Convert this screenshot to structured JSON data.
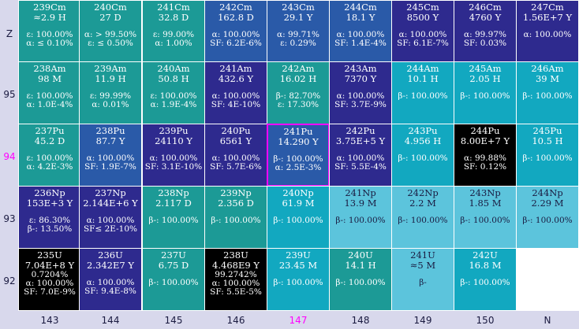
{
  "axes": {
    "y_labels": [
      {
        "text": "Z",
        "highlight": false
      },
      {
        "text": "95",
        "highlight": false
      },
      {
        "text": "94",
        "highlight": true
      },
      {
        "text": "93",
        "highlight": false
      },
      {
        "text": "92",
        "highlight": false
      }
    ],
    "x_labels": [
      {
        "text": "143",
        "highlight": false
      },
      {
        "text": "144",
        "highlight": false
      },
      {
        "text": "145",
        "highlight": false
      },
      {
        "text": "146",
        "highlight": false
      },
      {
        "text": "147",
        "highlight": true
      },
      {
        "text": "148",
        "highlight": false
      },
      {
        "text": "149",
        "highlight": false
      },
      {
        "text": "150",
        "highlight": false
      },
      {
        "text": "N",
        "highlight": false
      }
    ]
  },
  "colors": {
    "teal": "#1c9a96",
    "indigo": "#2e2a8e",
    "cyan": "#12a8c0",
    "sky": "#5cc4dc",
    "black": "#000000",
    "blue": "#2a5aa8",
    "selected_border": "#ff00ff",
    "empty": "#ffffff"
  },
  "rows": [
    [
      {
        "nuclide": "239Cm",
        "half_life": "≈2.9 H",
        "decays": [
          "ε: 100.00%",
          "α: ≤ 0.10%"
        ],
        "color": "teal"
      },
      {
        "nuclide": "240Cm",
        "half_life": "27 D",
        "decays": [
          "α: > 99.50%",
          "ε: ≤ 0.50%"
        ],
        "color": "teal"
      },
      {
        "nuclide": "241Cm",
        "half_life": "32.8 D",
        "decays": [
          "ε: 99.00%",
          "α: 1.00%"
        ],
        "color": "teal"
      },
      {
        "nuclide": "242Cm",
        "half_life": "162.8 D",
        "decays": [
          "α: 100.00%",
          "SF: 6.2E-6%"
        ],
        "color": "blue"
      },
      {
        "nuclide": "243Cm",
        "half_life": "29.1 Y",
        "decays": [
          "α: 99.71%",
          "ε: 0.29%"
        ],
        "color": "blue"
      },
      {
        "nuclide": "244Cm",
        "half_life": "18.1 Y",
        "decays": [
          "α: 100.00%",
          "SF: 1.4E-4%"
        ],
        "color": "blue"
      },
      {
        "nuclide": "245Cm",
        "half_life": "8500 Y",
        "decays": [
          "α: 100.00%",
          "SF: 6.1E-7%"
        ],
        "color": "indigo"
      },
      {
        "nuclide": "246Cm",
        "half_life": "4760 Y",
        "decays": [
          "α: 99.97%",
          "SF: 0.03%"
        ],
        "color": "indigo"
      },
      {
        "nuclide": "247Cm",
        "half_life": "1.56E+7 Y",
        "decays": [
          "α: 100.00%"
        ],
        "color": "indigo"
      }
    ],
    [
      {
        "nuclide": "238Am",
        "half_life": "98 M",
        "decays": [
          "ε: 100.00%",
          "α: 1.0E-4%"
        ],
        "color": "teal"
      },
      {
        "nuclide": "239Am",
        "half_life": "11.9 H",
        "decays": [
          "ε: 99.99%",
          "α: 0.01%"
        ],
        "color": "teal"
      },
      {
        "nuclide": "240Am",
        "half_life": "50.8 H",
        "decays": [
          "ε: 100.00%",
          "α: 1.9E-4%"
        ],
        "color": "teal"
      },
      {
        "nuclide": "241Am",
        "half_life": "432.6 Y",
        "decays": [
          "α: 100.00%",
          "SF: 4E-10%"
        ],
        "color": "indigo"
      },
      {
        "nuclide": "242Am",
        "half_life": "16.02 H",
        "decays": [
          "β-: 82.70%",
          "ε: 17.30%"
        ],
        "color": "teal"
      },
      {
        "nuclide": "243Am",
        "half_life": "7370 Y",
        "decays": [
          "α: 100.00%",
          "SF: 3.7E-9%"
        ],
        "color": "indigo"
      },
      {
        "nuclide": "244Am",
        "half_life": "10.1 H",
        "decays": [
          "β-: 100.00%"
        ],
        "color": "cyan"
      },
      {
        "nuclide": "245Am",
        "half_life": "2.05 H",
        "decays": [
          "β-: 100.00%"
        ],
        "color": "cyan"
      },
      {
        "nuclide": "246Am",
        "half_life": "39 M",
        "decays": [
          "β-: 100.00%"
        ],
        "color": "cyan"
      }
    ],
    [
      {
        "nuclide": "237Pu",
        "half_life": "45.2 D",
        "decays": [
          "ε: 100.00%",
          "α: 4.2E-3%"
        ],
        "color": "teal"
      },
      {
        "nuclide": "238Pu",
        "half_life": "87.7 Y",
        "decays": [
          "α: 100.00%",
          "SF: 1.9E-7%"
        ],
        "color": "blue"
      },
      {
        "nuclide": "239Pu",
        "half_life": "24110 Y",
        "decays": [
          "α: 100.00%",
          "SF: 3.1E-10%"
        ],
        "color": "indigo"
      },
      {
        "nuclide": "240Pu",
        "half_life": "6561 Y",
        "decays": [
          "α: 100.00%",
          "SF: 5.7E-6%"
        ],
        "color": "indigo"
      },
      {
        "nuclide": "241Pu",
        "half_life": "14.290 Y",
        "decays": [
          "β-: 100.00%",
          "α: 2.5E-3%"
        ],
        "color": "blue",
        "selected": true
      },
      {
        "nuclide": "242Pu",
        "half_life": "3.75E+5 Y",
        "decays": [
          "α: 100.00%",
          "SF: 5.5E-4%"
        ],
        "color": "indigo"
      },
      {
        "nuclide": "243Pu",
        "half_life": "4.956 H",
        "decays": [
          "β-: 100.00%"
        ],
        "color": "cyan"
      },
      {
        "nuclide": "244Pu",
        "half_life": "8.00E+7 Y",
        "decays": [
          "α: 99.88%",
          "SF: 0.12%"
        ],
        "color": "black"
      },
      {
        "nuclide": "245Pu",
        "half_life": "10.5 H",
        "decays": [
          "β-: 100.00%"
        ],
        "color": "cyan"
      }
    ],
    [
      {
        "nuclide": "236Np",
        "half_life": "153E+3 Y",
        "decays": [
          "ε: 86.30%",
          "β-: 13.50%"
        ],
        "color": "indigo"
      },
      {
        "nuclide": "237Np",
        "half_life": "2.144E+6 Y",
        "decays": [
          "α: 100.00%",
          "SF≤ 2E-10%"
        ],
        "color": "indigo"
      },
      {
        "nuclide": "238Np",
        "half_life": "2.117 D",
        "decays": [
          "β-: 100.00%"
        ],
        "color": "teal"
      },
      {
        "nuclide": "239Np",
        "half_life": "2.356 D",
        "decays": [
          "β-: 100.00%"
        ],
        "color": "teal"
      },
      {
        "nuclide": "240Np",
        "half_life": "61.9 M",
        "decays": [
          "β-: 100.00%"
        ],
        "color": "cyan"
      },
      {
        "nuclide": "241Np",
        "half_life": "13.9 M",
        "decays": [
          "β-: 100.00%"
        ],
        "color": "sky"
      },
      {
        "nuclide": "242Np",
        "half_life": "2.2 M",
        "decays": [
          "β-: 100.00%"
        ],
        "color": "sky"
      },
      {
        "nuclide": "243Np",
        "half_life": "1.85 M",
        "decays": [
          "β-: 100.00%"
        ],
        "color": "sky"
      },
      {
        "nuclide": "244Np",
        "half_life": "2.29 M",
        "decays": [
          "β-: 100.00%"
        ],
        "color": "sky"
      }
    ],
    [
      {
        "nuclide": "235U",
        "half_life": "7.04E+8 Y",
        "decays": [
          "0.7204%",
          "α: 100.00%",
          "SF: 7.0E-9%"
        ],
        "color": "black"
      },
      {
        "nuclide": "236U",
        "half_life": "2.342E7 Y",
        "decays": [
          "α: 100.00%",
          "SF: 9.4E-8%"
        ],
        "color": "indigo"
      },
      {
        "nuclide": "237U",
        "half_life": "6.75 D",
        "decays": [
          "β-: 100.00%"
        ],
        "color": "teal"
      },
      {
        "nuclide": "238U",
        "half_life": "4.468E9 Y",
        "decays": [
          "99.2742%",
          "α: 100.00%",
          "SF: 5.5E-5%"
        ],
        "color": "black"
      },
      {
        "nuclide": "239U",
        "half_life": "23.45 M",
        "decays": [
          "β-: 100.00%"
        ],
        "color": "cyan"
      },
      {
        "nuclide": "240U",
        "half_life": "14.1 H",
        "decays": [
          "β-: 100.00%"
        ],
        "color": "teal"
      },
      {
        "nuclide": "241U",
        "half_life": "≈5 M",
        "decays": [
          "β-"
        ],
        "color": "sky"
      },
      {
        "nuclide": "242U",
        "half_life": "16.8 M",
        "decays": [
          "β-: 100.00%"
        ],
        "color": "cyan"
      },
      null
    ]
  ]
}
